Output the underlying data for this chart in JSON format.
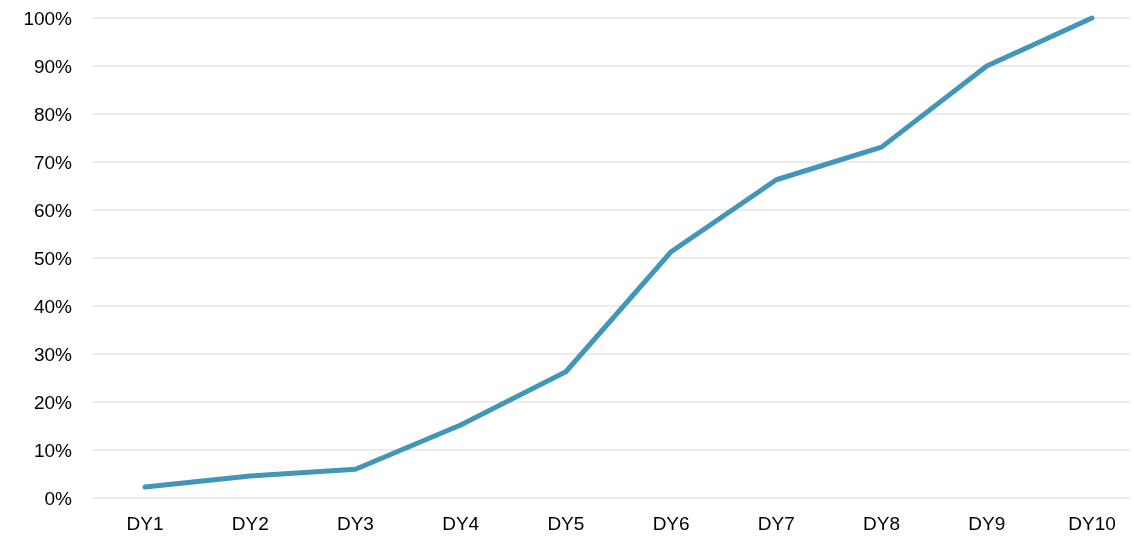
{
  "chart_data": {
    "type": "line",
    "categories": [
      "DY1",
      "DY2",
      "DY3",
      "DY4",
      "DY5",
      "DY6",
      "DY7",
      "DY8",
      "DY9",
      "DY10"
    ],
    "series": [
      {
        "color": "#4196b9",
        "values": [
          2.3,
          4.6,
          6,
          15.2,
          26.3,
          51.3,
          66.3,
          73.1,
          90,
          100
        ]
      }
    ],
    "ylim": [
      0,
      100
    ],
    "yticks": [
      {
        "value": 0,
        "label": "0%"
      },
      {
        "value": 10,
        "label": "10%"
      },
      {
        "value": 20,
        "label": "20%"
      },
      {
        "value": 30,
        "label": "30%"
      },
      {
        "value": 40,
        "label": "40%"
      },
      {
        "value": 50,
        "label": "50%"
      },
      {
        "value": 60,
        "label": "60%"
      },
      {
        "value": 70,
        "label": "70%"
      },
      {
        "value": 80,
        "label": "80%"
      },
      {
        "value": 90,
        "label": "90%"
      },
      {
        "value": 100,
        "label": "100%"
      }
    ],
    "grid": "y",
    "marker": "none",
    "line_style": "solid"
  }
}
